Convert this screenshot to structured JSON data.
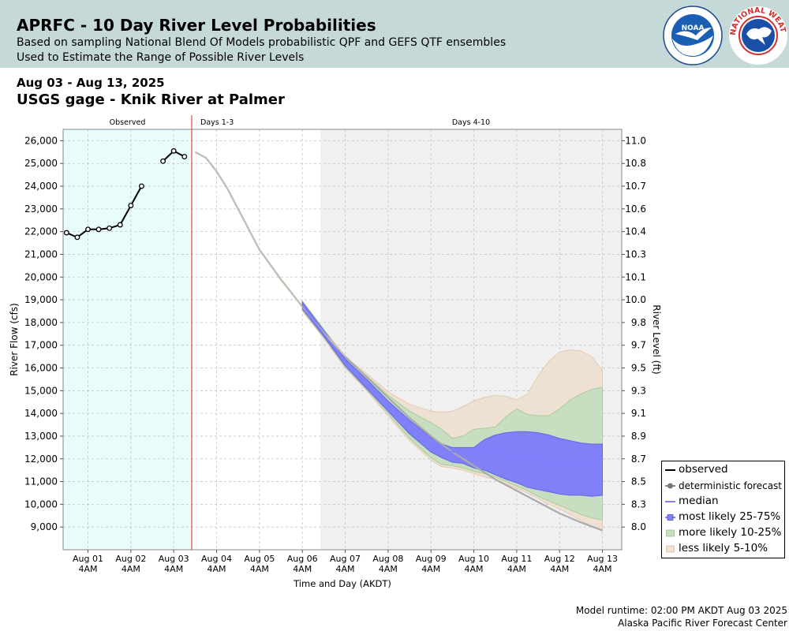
{
  "header": {
    "title": "APRFC - 10 Day River Level Probabilities",
    "subtitle_line1": "Based on sampling National Blend Of Models probabilistic QPF and GEFS QTF ensembles",
    "subtitle_line2": "Used to Estimate the Range of Possible River Levels",
    "logos": [
      "NOAA",
      "NATIONAL WEATHER SERVICE"
    ]
  },
  "date_range": "Aug 03 - Aug 13, 2025",
  "gage_title": "USGS gage - Knik River at Palmer",
  "footer": {
    "runtime": "Model runtime: 02:00 PM AKDT Aug 03 2025",
    "center": "Alaska Pacific River Forecast Center"
  },
  "colors": {
    "observed_bg": "#e9fcfc",
    "days410_bg": "#f0f0f0",
    "forecast_divider": "#e62222",
    "observed_line": "#000000",
    "deterministic": "#c8c8c8",
    "median": "#8080ff",
    "band_25_75": "#8080f8",
    "band_10_25": "#c7dec0",
    "band_5_10": "#eee0d2"
  },
  "chart_data": {
    "type": "line",
    "xlabel": "Time and Day (AKDT)",
    "ylabel": "River Flow (cfs)",
    "ylabel_right": "River Level (ft)",
    "ylim": [
      8000,
      26500
    ],
    "xlim": [
      -0.58,
      12.45
    ],
    "x_unit": "days since Aug 01 4AM",
    "period_labels": [
      "Observed",
      "Days 1-3",
      "Days 4-10"
    ],
    "period_bounds": {
      "observed_end": 2.42,
      "days1_3_end": 5.42
    },
    "x_ticks": [
      {
        "x": 0,
        "date": "Aug 01",
        "time": "4AM"
      },
      {
        "x": 1,
        "date": "Aug 02",
        "time": "4AM"
      },
      {
        "x": 2,
        "date": "Aug 03",
        "time": "4AM"
      },
      {
        "x": 3,
        "date": "Aug 04",
        "time": "4AM"
      },
      {
        "x": 4,
        "date": "Aug 05",
        "time": "4AM"
      },
      {
        "x": 5,
        "date": "Aug 06",
        "time": "4AM"
      },
      {
        "x": 6,
        "date": "Aug 07",
        "time": "4AM"
      },
      {
        "x": 7,
        "date": "Aug 08",
        "time": "4AM"
      },
      {
        "x": 8,
        "date": "Aug 09",
        "time": "4AM"
      },
      {
        "x": 9,
        "date": "Aug 10",
        "time": "4AM"
      },
      {
        "x": 10,
        "date": "Aug 11",
        "time": "4AM"
      },
      {
        "x": 11,
        "date": "Aug 12",
        "time": "4AM"
      },
      {
        "x": 12,
        "date": "Aug 13",
        "time": "4AM"
      }
    ],
    "y_ticks": [
      9000,
      10000,
      11000,
      12000,
      13000,
      14000,
      15000,
      16000,
      17000,
      18000,
      19000,
      20000,
      21000,
      22000,
      23000,
      24000,
      25000,
      26000
    ],
    "y_right_ticks": [
      {
        "flow": 26000,
        "label": "11.0"
      },
      {
        "flow": 25000,
        "label": "10.8"
      },
      {
        "flow": 24000,
        "label": "10.7"
      },
      {
        "flow": 23000,
        "label": "10.6"
      },
      {
        "flow": 22000,
        "label": "10.4"
      },
      {
        "flow": 21000,
        "label": "10.3"
      },
      {
        "flow": 20000,
        "label": "10.1"
      },
      {
        "flow": 19000,
        "label": "10.0"
      },
      {
        "flow": 18000,
        "label": "9.8"
      },
      {
        "flow": 17000,
        "label": "9.7"
      },
      {
        "flow": 16000,
        "label": "9.5"
      },
      {
        "flow": 15000,
        "label": "9.3"
      },
      {
        "flow": 14000,
        "label": "9.1"
      },
      {
        "flow": 13000,
        "label": "8.9"
      },
      {
        "flow": 12000,
        "label": "8.7"
      },
      {
        "flow": 11000,
        "label": "8.5"
      },
      {
        "flow": 10000,
        "label": "8.3"
      },
      {
        "flow": 9000,
        "label": "8.0"
      }
    ],
    "observed_segments": [
      [
        [
          -0.5,
          21950
        ],
        [
          -0.25,
          21750
        ],
        [
          0.0,
          22100
        ],
        [
          0.25,
          22100
        ],
        [
          0.5,
          22150
        ],
        [
          0.75,
          22300
        ],
        [
          1.0,
          23150
        ],
        [
          1.25,
          24000
        ]
      ],
      [
        [
          1.75,
          25100
        ],
        [
          2.0,
          25550
        ],
        [
          2.25,
          25300
        ]
      ]
    ],
    "deterministic": [
      [
        2.5,
        25500
      ],
      [
        2.75,
        25250
      ],
      [
        3.0,
        24650
      ],
      [
        3.25,
        23900
      ],
      [
        3.5,
        23000
      ],
      [
        3.75,
        22100
      ],
      [
        4.0,
        21200
      ],
      [
        4.5,
        19900
      ],
      [
        5.0,
        18700
      ],
      [
        5.5,
        17550
      ],
      [
        6.0,
        16500
      ],
      [
        6.5,
        15600
      ],
      [
        7.0,
        14700
      ],
      [
        7.5,
        13800
      ],
      [
        8.0,
        13000
      ],
      [
        8.5,
        12300
      ],
      [
        9.0,
        11700
      ],
      [
        9.5,
        11100
      ],
      [
        10.0,
        10600
      ],
      [
        10.5,
        10100
      ],
      [
        11.0,
        9600
      ],
      [
        11.5,
        9200
      ],
      [
        12.0,
        8850
      ]
    ],
    "median": [
      [
        5.0,
        18750
      ],
      [
        5.5,
        17500
      ],
      [
        6.0,
        16300
      ],
      [
        6.5,
        15300
      ],
      [
        7.0,
        14300
      ],
      [
        7.5,
        13400
      ],
      [
        7.75,
        12850
      ],
      [
        8.0,
        12550
      ],
      [
        8.25,
        12400
      ],
      [
        8.5,
        12300
      ],
      [
        9.0,
        12250
      ],
      [
        9.5,
        12250
      ],
      [
        10.0,
        12150
      ],
      [
        10.5,
        11950
      ],
      [
        11.0,
        11750
      ],
      [
        11.5,
        11850
      ],
      [
        12.0,
        11950
      ]
    ],
    "bands": {
      "x": [
        5.0,
        5.5,
        6.0,
        6.5,
        7.0,
        7.5,
        8.0,
        8.25,
        8.5,
        8.75,
        9.0,
        9.25,
        9.5,
        9.75,
        10.0,
        10.25,
        10.5,
        10.75,
        11.0,
        11.25,
        11.5,
        11.75,
        12.0
      ],
      "p05": [
        18500,
        17300,
        16000,
        15000,
        13900,
        12800,
        11950,
        11650,
        11600,
        11500,
        11350,
        11200,
        11100,
        10900,
        10700,
        10500,
        10250,
        10000,
        9800,
        9550,
        9300,
        9000,
        8850
      ],
      "p10": [
        18550,
        17350,
        16050,
        15050,
        14000,
        12900,
        12050,
        11750,
        11700,
        11600,
        11450,
        11350,
        11200,
        11000,
        10800,
        10600,
        10350,
        10150,
        9950,
        9750,
        9550,
        9400,
        9300
      ],
      "p25": [
        18600,
        17400,
        16100,
        15100,
        14100,
        13100,
        12300,
        12050,
        11850,
        11800,
        11600,
        11500,
        11300,
        11100,
        10950,
        10750,
        10650,
        10550,
        10450,
        10400,
        10400,
        10350,
        10400
      ],
      "p75": [
        18900,
        17650,
        16400,
        15500,
        14550,
        13700,
        12950,
        12650,
        12500,
        12500,
        12500,
        12850,
        13050,
        13150,
        13200,
        13200,
        13150,
        13050,
        12900,
        12800,
        12700,
        12650,
        12650
      ],
      "p90": [
        18950,
        17700,
        16450,
        15650,
        14800,
        14100,
        13600,
        13300,
        12900,
        13000,
        13300,
        13350,
        13400,
        13850,
        14200,
        13950,
        13900,
        13900,
        14200,
        14600,
        14850,
        15050,
        15150
      ],
      "p95": [
        18950,
        17700,
        16500,
        15750,
        14950,
        14400,
        14100,
        14050,
        14100,
        14300,
        14550,
        14700,
        14800,
        14750,
        14600,
        14850,
        15650,
        16300,
        16700,
        16800,
        16750,
        16500,
        15900
      ]
    },
    "legend_position": "bottom-right",
    "grid": true
  },
  "legend": {
    "observed": "observed",
    "deterministic": "deterministic forecast",
    "median": "median",
    "likely_25_75": "most likely 25-75%",
    "likely_10_25": "more likely 10-25%",
    "likely_5_10": "less likely 5-10%"
  }
}
